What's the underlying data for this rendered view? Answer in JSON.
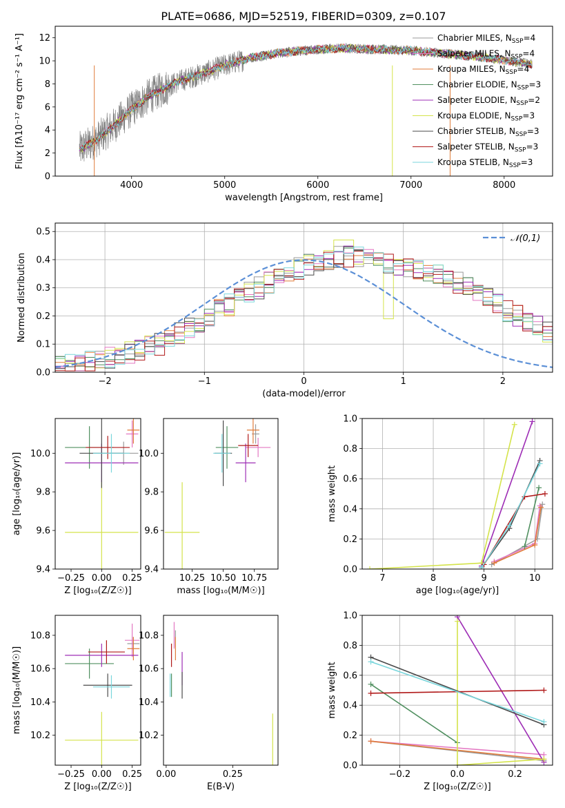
{
  "figure_title": "PLATE=0686, MJD=52519, FIBERID=0309, z=0.107",
  "colors": {
    "data": "#808080",
    "Chabrier MILES": "#9a9a9a",
    "Salpeter MILES": "#e377c2",
    "Kroupa MILES": "#e07b39",
    "Chabrier ELODIE": "#4f8f5f",
    "Salpeter ELODIE": "#9d2cb5",
    "Kroupa ELODIE": "#d4e34a",
    "Chabrier STELIB": "#4a4a4a",
    "Salpeter STELIB": "#b01818",
    "Kroupa STELIB": "#79d6dc",
    "gaussian": "#5b8fd6"
  },
  "labels": {
    "spec_ylabel_main": "Flux [f",
    "spec_ylabel_rest": "10",
    "hist_legend": "𝒩(0,1)"
  },
  "chart_data": [
    {
      "type": "line",
      "title": "PLATE=0686, MJD=52519, FIBERID=0309, z=0.107",
      "xlabel": "wavelength [Angstrom, rest frame]",
      "ylabel": "Flux [fλ10⁻¹⁷ erg cm⁻² s⁻¹ A⁻¹]",
      "xlim": [
        3180,
        8520
      ],
      "ylim": [
        0,
        13
      ],
      "xticks": [
        "4000",
        "5000",
        "6000",
        "7000",
        "8000"
      ],
      "yticks": [
        "0",
        "2",
        "4",
        "6",
        "8",
        "10",
        "12"
      ],
      "continuum": {
        "x": [
          3440,
          3600,
          3800,
          4000,
          4200,
          4500,
          4800,
          5000,
          5300,
          5600,
          6000,
          6300,
          6600,
          7000,
          7400,
          7800,
          8300
        ],
        "y": [
          2.3,
          3.0,
          4.3,
          5.8,
          7.0,
          8.2,
          9.0,
          9.6,
          10.3,
          10.7,
          11.0,
          11.1,
          11.0,
          10.9,
          10.6,
          10.3,
          9.7
        ]
      },
      "legend": [
        {
          "name": "Chabrier MILES",
          "n": "4"
        },
        {
          "name": "Salpeter MILES",
          "n": "4"
        },
        {
          "name": "Kroupa MILES",
          "n": "4"
        },
        {
          "name": "Chabrier ELODIE",
          "n": "3"
        },
        {
          "name": "Salpeter ELODIE",
          "n": "2"
        },
        {
          "name": "Kroupa ELODIE",
          "n": "3"
        },
        {
          "name": "Chabrier STELIB",
          "n": "3"
        },
        {
          "name": "Salpeter STELIB",
          "n": "3"
        },
        {
          "name": "Kroupa STELIB",
          "n": "3"
        }
      ]
    },
    {
      "type": "line",
      "xlabel": "(data-model)/error",
      "ylabel": "Normed distribution",
      "xlim": [
        -2.5,
        2.5
      ],
      "ylim": [
        0,
        0.53
      ],
      "xticks": [
        "−2",
        "−1",
        "0",
        "1",
        "2"
      ],
      "yticks": [
        "0.0",
        "0.1",
        "0.2",
        "0.3",
        "0.4",
        "0.5"
      ],
      "grid": true,
      "bin_width": 0.1,
      "bin_start": -2.5,
      "base_values": [
        0.02,
        0.025,
        0.03,
        0.035,
        0.04,
        0.05,
        0.06,
        0.07,
        0.08,
        0.09,
        0.1,
        0.12,
        0.14,
        0.16,
        0.18,
        0.2,
        0.22,
        0.24,
        0.26,
        0.28,
        0.3,
        0.32,
        0.34,
        0.36,
        0.37,
        0.38,
        0.39,
        0.4,
        0.41,
        0.41,
        0.41,
        0.4,
        0.4,
        0.39,
        0.38,
        0.37,
        0.37,
        0.36,
        0.35,
        0.34,
        0.32,
        0.3,
        0.28,
        0.26,
        0.24,
        0.22,
        0.2,
        0.18,
        0.16,
        0.14,
        0.12,
        0.1,
        0.09,
        0.08,
        0.07,
        0.06,
        0.05,
        0.04,
        0.035,
        0.03
      ],
      "legend_position": "top-right"
    },
    {
      "type": "scatter",
      "xlabel": "Z [log₁₀(Z/Z☉)]",
      "ylabel": "age  [log₁₀(age/yr)]",
      "xlim": [
        -0.38,
        0.32
      ],
      "ylim": [
        9.4,
        10.18
      ],
      "xticks": [
        "−0.25",
        "0.00",
        "0.25"
      ],
      "yticks": [
        "9.4",
        "9.6",
        "9.8",
        "10.0"
      ],
      "points": [
        {
          "s": "Chabrier MILES",
          "x": 0.18,
          "y": 10.0,
          "ex": 0.12,
          "ey": 0.06
        },
        {
          "s": "Salpeter MILES",
          "x": 0.25,
          "y": 10.1,
          "ex": 0.05,
          "ey": 0.07
        },
        {
          "s": "Kroupa MILES",
          "x": 0.26,
          "y": 10.12,
          "ex": 0.05,
          "ey": 0.07
        },
        {
          "s": "Chabrier ELODIE",
          "x": -0.1,
          "y": 10.03,
          "ex": 0.2,
          "ey": 0.11
        },
        {
          "s": "Salpeter ELODIE",
          "x": 0.0,
          "y": 9.95,
          "ex": 0.3,
          "ey": 0.1
        },
        {
          "s": "Kroupa ELODIE",
          "x": 0.0,
          "y": 9.59,
          "ex": 0.3,
          "ey": 0.26
        },
        {
          "s": "Chabrier STELIB",
          "x": 0.0,
          "y": 10.0,
          "ex": 0.18,
          "ey": 0.18
        },
        {
          "s": "Salpeter STELIB",
          "x": 0.05,
          "y": 10.03,
          "ex": 0.18,
          "ey": 0.06
        },
        {
          "s": "Kroupa STELIB",
          "x": 0.08,
          "y": 10.0,
          "ex": 0.15,
          "ey": 0.1
        }
      ]
    },
    {
      "type": "scatter",
      "xlabel": "mass [log₁₀(M/M☉)]",
      "ylabel": "",
      "xlim": [
        10.02,
        10.94
      ],
      "ylim": [
        9.4,
        10.18
      ],
      "xticks": [
        "10.25",
        "10.50",
        "10.75"
      ],
      "yticks": [
        "9.4",
        "9.6",
        "9.8",
        "10.0"
      ],
      "points": [
        {
          "s": "Chabrier MILES",
          "x": 10.76,
          "y": 10.1,
          "ex": 0.03,
          "ey": 0.05
        },
        {
          "s": "Salpeter MILES",
          "x": 10.78,
          "y": 10.03,
          "ex": 0.1,
          "ey": 0.05
        },
        {
          "s": "Kroupa MILES",
          "x": 10.74,
          "y": 10.12,
          "ex": 0.05,
          "ey": 0.07
        },
        {
          "s": "Chabrier ELODIE",
          "x": 10.53,
          "y": 10.03,
          "ex": 0.09,
          "ey": 0.11
        },
        {
          "s": "Salpeter ELODIE",
          "x": 10.68,
          "y": 9.95,
          "ex": 0.08,
          "ey": 0.1
        },
        {
          "s": "Kroupa ELODIE",
          "x": 10.17,
          "y": 9.59,
          "ex": 0.14,
          "ey": 0.26
        },
        {
          "s": "Chabrier STELIB",
          "x": 10.5,
          "y": 10.0,
          "ex": 0.07,
          "ey": 0.17
        },
        {
          "s": "Salpeter STELIB",
          "x": 10.7,
          "y": 10.04,
          "ex": 0.08,
          "ey": 0.06
        },
        {
          "s": "Kroupa STELIB",
          "x": 10.49,
          "y": 10.0,
          "ex": 0.07,
          "ey": 0.1
        }
      ]
    },
    {
      "type": "line",
      "xlabel": "age  [log₁₀(age/yr)]",
      "ylabel": "mass weight",
      "xlim": [
        6.6,
        10.35
      ],
      "ylim": [
        0,
        1.0
      ],
      "xticks": [
        "7",
        "8",
        "9",
        "10"
      ],
      "yticks": [
        "0.0",
        "0.2",
        "0.4",
        "0.6",
        "0.8",
        "1.0"
      ],
      "grid": true,
      "series": [
        {
          "s": "Chabrier MILES",
          "x": [
            9.15,
            10.05,
            10.15
          ],
          "y": [
            0.03,
            0.2,
            0.43
          ]
        },
        {
          "s": "Salpeter MILES",
          "x": [
            9.2,
            10.0,
            10.1
          ],
          "y": [
            0.05,
            0.17,
            0.42
          ]
        },
        {
          "s": "Kroupa MILES",
          "x": [
            9.2,
            10.0,
            10.12
          ],
          "y": [
            0.04,
            0.16,
            0.41
          ]
        },
        {
          "s": "Chabrier ELODIE",
          "x": [
            9.8,
            10.08
          ],
          "y": [
            0.15,
            0.54
          ]
        },
        {
          "s": "Salpeter ELODIE",
          "x": [
            8.95,
            9.95
          ],
          "y": [
            0.02,
            0.98
          ]
        },
        {
          "s": "Kroupa ELODIE",
          "x": [
            6.75,
            8.95,
            9.6
          ],
          "y": [
            0.0,
            0.04,
            0.96
          ]
        },
        {
          "s": "Chabrier STELIB",
          "x": [
            8.95,
            9.5,
            10.1
          ],
          "y": [
            0.01,
            0.27,
            0.72
          ]
        },
        {
          "s": "Salpeter STELIB",
          "x": [
            9.0,
            9.8,
            10.2
          ],
          "y": [
            0.03,
            0.48,
            0.5
          ]
        },
        {
          "s": "Kroupa STELIB",
          "x": [
            8.95,
            9.5,
            10.1
          ],
          "y": [
            0.01,
            0.29,
            0.7
          ]
        }
      ]
    },
    {
      "type": "scatter",
      "xlabel": "Z [log₁₀(Z/Z☉)]",
      "ylabel": "mass [log₁₀(M/M☉)]",
      "xlim": [
        -0.38,
        0.32
      ],
      "ylim": [
        10.02,
        10.92
      ],
      "xticks": [
        "−0.25",
        "0.00",
        "0.25"
      ],
      "yticks": [
        "10.2",
        "10.4",
        "10.6",
        "10.8"
      ],
      "points": [
        {
          "s": "Chabrier MILES",
          "x": 0.26,
          "y": 10.75,
          "ex": 0.05,
          "ey": 0.04
        },
        {
          "s": "Salpeter MILES",
          "x": 0.25,
          "y": 10.77,
          "ex": 0.06,
          "ey": 0.1
        },
        {
          "s": "Kroupa MILES",
          "x": 0.26,
          "y": 10.72,
          "ex": 0.05,
          "ey": 0.07
        },
        {
          "s": "Chabrier ELODIE",
          "x": -0.1,
          "y": 10.63,
          "ex": 0.2,
          "ey": 0.09
        },
        {
          "s": "Salpeter ELODIE",
          "x": 0.0,
          "y": 10.68,
          "ex": 0.3,
          "ey": 0.07
        },
        {
          "s": "Kroupa ELODIE",
          "x": 0.0,
          "y": 10.17,
          "ex": 0.3,
          "ey": 0.17
        },
        {
          "s": "Chabrier STELIB",
          "x": 0.05,
          "y": 10.5,
          "ex": 0.2,
          "ey": 0.07
        },
        {
          "s": "Salpeter STELIB",
          "x": 0.04,
          "y": 10.7,
          "ex": 0.15,
          "ey": 0.07
        },
        {
          "s": "Kroupa STELIB",
          "x": 0.08,
          "y": 10.49,
          "ex": 0.15,
          "ey": 0.07
        }
      ]
    },
    {
      "type": "scatter",
      "xlabel": "E(B-V)",
      "ylabel": "",
      "xlim": [
        -0.01,
        0.42
      ],
      "ylim": [
        10.02,
        10.92
      ],
      "xticks": [
        "0.00",
        "0.25"
      ],
      "yticks": [
        "10.2",
        "10.4",
        "10.6",
        "10.8"
      ],
      "points": [
        {
          "s": "Chabrier MILES",
          "x": 0.035,
          "y": 10.78,
          "ex": 0.0,
          "ey": 0.05
        },
        {
          "s": "Salpeter MILES",
          "x": 0.03,
          "y": 10.8,
          "ex": 0.0,
          "ey": 0.08
        },
        {
          "s": "Kroupa MILES",
          "x": 0.035,
          "y": 10.72,
          "ex": 0.0,
          "ey": 0.07
        },
        {
          "s": "Chabrier ELODIE",
          "x": 0.02,
          "y": 10.5,
          "ex": 0.0,
          "ey": 0.07
        },
        {
          "s": "Salpeter ELODIE",
          "x": 0.06,
          "y": 10.6,
          "ex": 0.0,
          "ey": 0.1
        },
        {
          "s": "Kroupa ELODIE",
          "x": 0.4,
          "y": 10.15,
          "ex": 0.0,
          "ey": 0.18
        },
        {
          "s": "Chabrier STELIB",
          "x": 0.06,
          "y": 10.5,
          "ex": 0.0,
          "ey": 0.08
        },
        {
          "s": "Salpeter STELIB",
          "x": 0.02,
          "y": 10.68,
          "ex": 0.0,
          "ey": 0.07
        },
        {
          "s": "Kroupa STELIB",
          "x": 0.015,
          "y": 10.5,
          "ex": 0.0,
          "ey": 0.07
        }
      ]
    },
    {
      "type": "line",
      "xlabel": "Z [log₁₀(Z/Z☉)]",
      "ylabel": "mass weight",
      "xlim": [
        -0.33,
        0.33
      ],
      "ylim": [
        0,
        1.0
      ],
      "xticks": [
        "−0.2",
        "0.0",
        "0.2"
      ],
      "yticks": [
        "0.0",
        "0.2",
        "0.4",
        "0.6",
        "0.8",
        "1.0"
      ],
      "grid": true,
      "series": [
        {
          "s": "Chabrier MILES",
          "x": [
            -0.3,
            0.3
          ],
          "y": [
            0.16,
            0.03
          ]
        },
        {
          "s": "Salpeter MILES",
          "x": [
            -0.3,
            0.3
          ],
          "y": [
            0.16,
            0.07
          ]
        },
        {
          "s": "Kroupa MILES",
          "x": [
            -0.3,
            0.3
          ],
          "y": [
            0.16,
            0.04
          ]
        },
        {
          "s": "Chabrier ELODIE",
          "x": [
            -0.3,
            0.0
          ],
          "y": [
            0.54,
            0.15
          ]
        },
        {
          "s": "Salpeter ELODIE",
          "x": [
            0.0,
            0.3
          ],
          "y": [
            0.99,
            0.02
          ]
        },
        {
          "s": "Kroupa ELODIE",
          "x": [
            0.0,
            0.0,
            0.3
          ],
          "y": [
            0.96,
            0.0,
            0.04
          ]
        },
        {
          "s": "Chabrier STELIB",
          "x": [
            -0.3,
            0.3
          ],
          "y": [
            0.72,
            0.27
          ]
        },
        {
          "s": "Salpeter STELIB",
          "x": [
            -0.3,
            0.3
          ],
          "y": [
            0.48,
            0.5
          ]
        },
        {
          "s": "Kroupa STELIB",
          "x": [
            -0.3,
            0.3
          ],
          "y": [
            0.69,
            0.29
          ]
        }
      ]
    }
  ]
}
